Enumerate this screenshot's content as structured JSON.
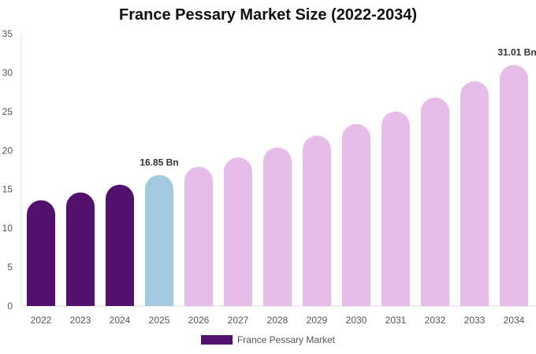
{
  "chart_data": {
    "type": "bar",
    "title": "France Pessary Market Size (2022-2034)",
    "categories": [
      "2022",
      "2023",
      "2024",
      "2025",
      "2026",
      "2027",
      "2028",
      "2029",
      "2030",
      "2031",
      "2032",
      "2033",
      "2034"
    ],
    "series": [
      {
        "name": "France Pessary Market",
        "values": [
          13.6,
          14.6,
          15.6,
          16.85,
          17.9,
          19.1,
          20.4,
          21.9,
          23.4,
          25.0,
          26.8,
          28.9,
          31.01
        ]
      }
    ],
    "bar_colors": [
      "#52116e",
      "#52116e",
      "#52116e",
      "#a3cae0",
      "#e6bde8",
      "#e6bde8",
      "#e6bde8",
      "#e6bde8",
      "#e6bde8",
      "#e6bde8",
      "#e6bde8",
      "#e6bde8",
      "#e6bde8"
    ],
    "data_labels": [
      {
        "category": "2025",
        "text": "16.85 Bn"
      },
      {
        "category": "2034",
        "text": "31.01 Bn"
      }
    ],
    "ylim": [
      0,
      35
    ],
    "yticks": [
      0,
      5,
      10,
      15,
      20,
      25,
      30,
      35
    ],
    "xlabel": "",
    "ylabel": "",
    "legend_position": "bottom",
    "legend_color": "#52116e",
    "grid": false
  }
}
